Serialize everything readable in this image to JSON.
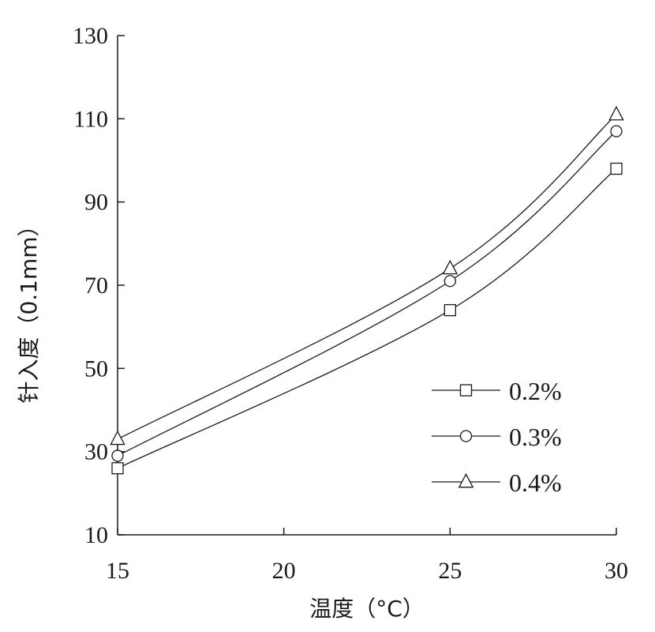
{
  "chart_data": {
    "type": "line",
    "xlabel": "温度（°C）",
    "ylabel": "针入度（0.1mm）",
    "xlim": [
      15,
      30
    ],
    "ylim": [
      10,
      130
    ],
    "xticks": [
      15,
      20,
      25,
      30
    ],
    "yticks": [
      10,
      30,
      50,
      70,
      90,
      110,
      130
    ],
    "x": [
      15,
      25,
      30
    ],
    "series": [
      {
        "name": "0.2%",
        "marker": "square",
        "values": [
          26,
          64,
          98
        ]
      },
      {
        "name": "0.3%",
        "marker": "circle",
        "values": [
          29,
          71,
          107
        ]
      },
      {
        "name": "0.4%",
        "marker": "triangle",
        "values": [
          33,
          74,
          111
        ]
      }
    ],
    "legend_position": "right",
    "grid": false,
    "line_color": "#1a1a1a"
  }
}
